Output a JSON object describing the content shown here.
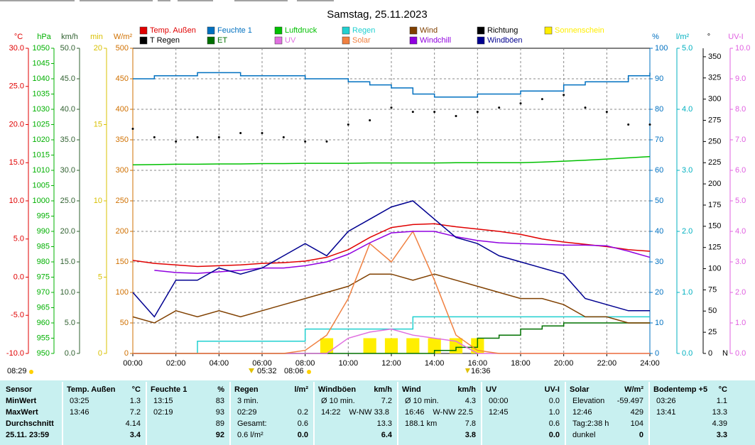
{
  "chart_data": {
    "type": "line",
    "title": "Samstag, 25.11.2023",
    "x": [
      0,
      1,
      2,
      3,
      4,
      5,
      6,
      7,
      8,
      9,
      10,
      11,
      12,
      13,
      14,
      15,
      16,
      17,
      18,
      19,
      20,
      21,
      22,
      23,
      24
    ],
    "xlim": [
      0,
      24
    ],
    "xticks": [
      {
        "value": 0,
        "label": "00:00"
      },
      {
        "value": 2,
        "label": "02:00"
      },
      {
        "value": 4,
        "label": "04:00"
      },
      {
        "value": 6,
        "label": "06:00"
      },
      {
        "value": 8,
        "label": "08:00"
      },
      {
        "value": 10,
        "label": "10:00"
      },
      {
        "value": 12,
        "label": "12:00"
      },
      {
        "value": 14,
        "label": "14:00"
      },
      {
        "value": 16,
        "label": "16:00"
      },
      {
        "value": 18,
        "label": "18:00"
      },
      {
        "value": 20,
        "label": "20:00"
      },
      {
        "value": 22,
        "label": "22:00"
      },
      {
        "value": 24,
        "label": "24:00"
      }
    ],
    "axes": [
      {
        "unit": "°C",
        "color": "#e00000",
        "side": "left",
        "lim": [
          -10,
          30
        ],
        "ticks": [
          {
            "value": -10,
            "label": "-10.0"
          },
          {
            "value": -5,
            "label": "-5.0"
          },
          {
            "value": 0,
            "label": "0.0"
          },
          {
            "value": 5,
            "label": "5.0"
          },
          {
            "value": 10,
            "label": "10.0"
          },
          {
            "value": 15,
            "label": "15.0"
          },
          {
            "value": 20,
            "label": "20.0"
          },
          {
            "value": 25,
            "label": "25.0"
          },
          {
            "value": 30,
            "label": "30.0"
          }
        ]
      },
      {
        "unit": "hPa",
        "color": "#00b000",
        "side": "left",
        "lim": [
          950,
          1050
        ],
        "ticks": [
          950,
          955,
          960,
          965,
          970,
          975,
          980,
          985,
          990,
          995,
          1000,
          1005,
          1010,
          1015,
          1020,
          1025,
          1030,
          1035,
          1040,
          1045,
          1050
        ]
      },
      {
        "unit": "km/h",
        "color": "#306030",
        "side": "left",
        "lim": [
          0,
          50
        ],
        "ticks": [
          {
            "value": 0,
            "label": "0.0"
          },
          {
            "value": 5,
            "label": "5.0"
          },
          {
            "value": 10,
            "label": "10.0"
          },
          {
            "value": 15,
            "label": "15.0"
          },
          {
            "value": 20,
            "label": "20.0"
          },
          {
            "value": 25,
            "label": "25.0"
          },
          {
            "value": 30,
            "label": "30.0"
          },
          {
            "value": 35,
            "label": "35.0"
          },
          {
            "value": 40,
            "label": "40.0"
          },
          {
            "value": 45,
            "label": "45.0"
          },
          {
            "value": 50,
            "label": "50.0"
          }
        ]
      },
      {
        "unit": "min",
        "color": "#d8c000",
        "side": "left",
        "lim": [
          0,
          20
        ],
        "ticks": [
          0,
          5,
          10,
          15,
          20
        ]
      },
      {
        "unit": "W/m²",
        "color": "#d07000",
        "side": "left",
        "lim": [
          0,
          500
        ],
        "ticks": [
          0,
          50,
          100,
          150,
          200,
          250,
          300,
          350,
          400,
          450,
          500
        ],
        "grid": true
      },
      {
        "unit": "%",
        "color": "#0070c0",
        "side": "right",
        "lim": [
          0,
          100
        ],
        "ticks": [
          0,
          10,
          20,
          30,
          40,
          50,
          60,
          70,
          80,
          90,
          100
        ]
      },
      {
        "unit": "l/m²",
        "color": "#00b0c0",
        "side": "right",
        "lim": [
          0,
          5
        ],
        "ticks": [
          {
            "value": 0,
            "label": "0.0"
          },
          {
            "value": 1,
            "label": "1.0"
          },
          {
            "value": 2,
            "label": "2.0"
          },
          {
            "value": 3,
            "label": "3.0"
          },
          {
            "value": 4,
            "label": "4.0"
          },
          {
            "value": 5,
            "label": "5.0"
          }
        ]
      },
      {
        "unit": "°",
        "color": "#000000",
        "side": "right",
        "lim": [
          0,
          360
        ],
        "ticks": [
          0,
          25,
          50,
          75,
          100,
          125,
          150,
          175,
          200,
          225,
          250,
          275,
          300,
          325,
          350
        ]
      },
      {
        "unit": "UV-I",
        "color": "#e060e0",
        "side": "right",
        "lim": [
          0,
          10
        ],
        "ticks": [
          {
            "value": 0,
            "label": "0.0"
          },
          {
            "value": 1,
            "label": "1.0"
          },
          {
            "value": 2,
            "label": "2.0"
          },
          {
            "value": 3,
            "label": "3.0"
          },
          {
            "value": 4,
            "label": "4.0"
          },
          {
            "value": 5,
            "label": "5.0"
          },
          {
            "value": 6,
            "label": "6.0"
          },
          {
            "value": 7,
            "label": "7.0"
          },
          {
            "value": 8,
            "label": "8.0"
          },
          {
            "value": 9,
            "label": "9.0"
          },
          {
            "value": 10,
            "label": "10.0"
          }
        ]
      }
    ],
    "series": [
      {
        "name": "Temp. Außen",
        "color": "#e00000",
        "axis": 0,
        "style": "line",
        "values": [
          2.2,
          1.8,
          1.6,
          1.4,
          1.5,
          1.6,
          1.8,
          1.9,
          2.1,
          2.6,
          3.6,
          5.2,
          6.5,
          6.9,
          7.0,
          6.6,
          6.3,
          6.0,
          5.6,
          5.0,
          4.6,
          4.3,
          4.0,
          3.6,
          3.4
        ]
      },
      {
        "name": "Feuchte 1",
        "color": "#0070c0",
        "axis": 5,
        "style": "step",
        "values": [
          90,
          91,
          91,
          92,
          92,
          91,
          91,
          91,
          90,
          90,
          89,
          88,
          87,
          85,
          84,
          84,
          85,
          85,
          86,
          86,
          88,
          89,
          89,
          91,
          92
        ]
      },
      {
        "name": "Luftdruck",
        "color": "#00c000",
        "axis": 1,
        "style": "line",
        "values": [
          1011.8,
          1011.9,
          1012,
          1012,
          1012.1,
          1012.1,
          1012.2,
          1012.2,
          1012.3,
          1012.3,
          1012.3,
          1012.4,
          1012.4,
          1012.4,
          1012.4,
          1012.5,
          1012.5,
          1012.5,
          1012.5,
          1012.7,
          1013,
          1013.3,
          1013.7,
          1014.1,
          1014.5
        ]
      },
      {
        "name": "Regen",
        "color": "#20d0d0",
        "axis": 6,
        "style": "step",
        "values": [
          0,
          0,
          0,
          0.2,
          0.2,
          0.2,
          0.2,
          0.2,
          0.4,
          0.4,
          0.4,
          0.4,
          0.4,
          0.6,
          0.6,
          0.6,
          0.6,
          0.6,
          0.6,
          0.6,
          0.6,
          0.6,
          0.6,
          0.6,
          0.6
        ]
      },
      {
        "name": "Wind",
        "color": "#804000",
        "axis": 2,
        "style": "line",
        "values": [
          6,
          5,
          7,
          6,
          7,
          6,
          7,
          8,
          9,
          10,
          11,
          13,
          13,
          12,
          13,
          12,
          11,
          10,
          9,
          9,
          8,
          6,
          6,
          5,
          5
        ]
      },
      {
        "name": "Richtung",
        "color": "#000000",
        "axis": 7,
        "style": "scatter",
        "values": [
          265,
          255,
          250,
          255,
          255,
          260,
          260,
          255,
          250,
          250,
          270,
          275,
          290,
          285,
          285,
          280,
          285,
          290,
          295,
          300,
          305,
          290,
          285,
          270,
          270
        ]
      },
      {
        "name": "Sonnenschein",
        "color": "#ffee00",
        "axis": 3,
        "style": "bar",
        "values": [
          0,
          0,
          0,
          0,
          0,
          0,
          0,
          0,
          0,
          1,
          0,
          1,
          1,
          1,
          1,
          1,
          1,
          0,
          0,
          0,
          0,
          0,
          0,
          0,
          0
        ]
      },
      {
        "name": "T Regen",
        "color": "#000000",
        "axis": 0,
        "style": "line",
        "values": [
          null,
          null,
          null,
          null,
          null,
          null,
          null,
          null,
          null,
          null,
          null,
          null,
          null,
          null,
          null,
          null,
          null,
          null,
          null,
          null,
          null,
          null,
          null,
          null,
          null
        ]
      },
      {
        "name": "ET",
        "color": "#007000",
        "axis": 6,
        "style": "step",
        "values": [
          0,
          0,
          0,
          0,
          0,
          0,
          0,
          0,
          0,
          0,
          0,
          0,
          0,
          0,
          0.05,
          0.1,
          0.25,
          0.3,
          0.4,
          0.45,
          0.5,
          0.5,
          0.5,
          0.5,
          0.5
        ]
      },
      {
        "name": "UV",
        "color": "#e070e0",
        "axis": 8,
        "style": "line",
        "values": [
          0,
          0,
          0,
          0,
          0,
          0,
          0,
          0,
          0,
          0,
          0.5,
          0.7,
          0.8,
          0.6,
          0.5,
          0.4,
          0,
          0,
          0,
          0,
          0,
          0,
          0,
          0,
          0
        ]
      },
      {
        "name": "Solar",
        "color": "#f08040",
        "axis": 4,
        "style": "line",
        "values": [
          0,
          0,
          0,
          0,
          0,
          0,
          0,
          0,
          5,
          30,
          90,
          180,
          150,
          200,
          120,
          30,
          5,
          0,
          0,
          0,
          0,
          0,
          0,
          0,
          0
        ]
      },
      {
        "name": "Windchill",
        "color": "#9000e0",
        "axis": 0,
        "style": "line",
        "values": [
          null,
          0.9,
          0.6,
          0.5,
          0.7,
          0.9,
          1.2,
          1.2,
          1.5,
          2.0,
          3.0,
          4.5,
          5.8,
          6.0,
          6.0,
          5.3,
          4.8,
          4.5,
          4.4,
          4.3,
          4.2,
          4.2,
          4.1,
          3.4,
          2.6
        ]
      },
      {
        "name": "Windböen",
        "color": "#000090",
        "axis": 2,
        "style": "line",
        "values": [
          10,
          6,
          12,
          12,
          14,
          13,
          14,
          16,
          18,
          16,
          20,
          22,
          24,
          25,
          22,
          19,
          18,
          16,
          15,
          14,
          13,
          9,
          8,
          7,
          7
        ]
      }
    ],
    "annotations": [
      "08:29",
      "05:32",
      "08:06",
      "16:36",
      "N"
    ]
  },
  "stats": {
    "row_labels": [
      "Sensor",
      "MinWert",
      "MaxWert",
      "Durchschnitt",
      "25.11. 23:59"
    ],
    "groups": [
      {
        "title": "Temp. Außen",
        "unit": "°C",
        "rows": [
          {
            "left": "03:25",
            "value": "1.3"
          },
          {
            "left": "13:46",
            "value": "7.2"
          },
          {
            "value": "4.14"
          },
          {
            "value": "3.4"
          }
        ]
      },
      {
        "title": "Feuchte 1",
        "unit": "%",
        "rows": [
          {
            "left": "13:15",
            "value": "83"
          },
          {
            "left": "02:19",
            "value": "93"
          },
          {
            "value": "89"
          },
          {
            "value": "92"
          }
        ]
      },
      {
        "title": "Regen",
        "unit": "l/m²",
        "rows": [
          {
            "left": "3 min."
          },
          {
            "left": "02:29",
            "value": "0.2"
          },
          {
            "left": "Gesamt:",
            "value": "0.6"
          },
          {
            "left": "0.6 l/m²",
            "value": "0.0"
          }
        ]
      },
      {
        "title": "Windböen",
        "unit": "km/h",
        "rows": [
          {
            "left": "Ø 10 min.",
            "value": "7.2"
          },
          {
            "left": "14:22",
            "mid": "W-NW 33.8"
          },
          {
            "value": "13.3"
          },
          {
            "value": "6.4"
          }
        ]
      },
      {
        "title": "Wind",
        "unit": "km/h",
        "rows": [
          {
            "left": "Ø 10 min.",
            "value": "4.3"
          },
          {
            "left": "16:46",
            "mid": "W-NW 22.5"
          },
          {
            "left": "188.1 km",
            "value": "7.8"
          },
          {
            "value": "3.8"
          }
        ]
      },
      {
        "title": "UV",
        "unit": "UV-I",
        "rows": [
          {
            "left": "00:00",
            "value": "0.0"
          },
          {
            "left": "12:45",
            "value": "1.0"
          },
          {
            "value": "0.6"
          },
          {
            "value": "0.0"
          }
        ]
      },
      {
        "title": "Solar",
        "unit": "W/m²",
        "rows": [
          {
            "left": "Elevation",
            "value": "-59.497"
          },
          {
            "left": "12:46",
            "value": "429"
          },
          {
            "left": "Tag:2:38 h",
            "value": "104"
          },
          {
            "left": "dunkel",
            "value": "0"
          }
        ]
      },
      {
        "title": "Bodentemp +5",
        "unit": "°C",
        "rows": [
          {
            "left": "03:26",
            "value": "1.1"
          },
          {
            "left": "13:41",
            "value": "13.3"
          },
          {
            "value": "4.39"
          },
          {
            "value": "3.3"
          }
        ]
      }
    ]
  }
}
